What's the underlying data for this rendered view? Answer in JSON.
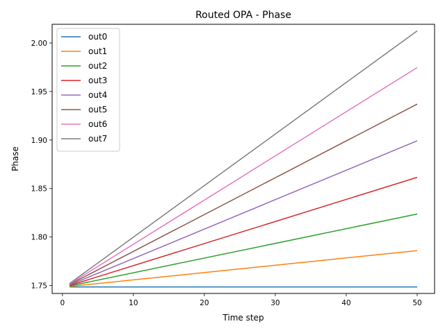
{
  "chart_data": {
    "type": "line",
    "title": "Routed OPA - Phase",
    "xlabel": "Time step",
    "ylabel": "Phase",
    "xlim": [
      -1.45,
      52.45
    ],
    "ylim": [
      1.7418,
      2.0193
    ],
    "xticks": [
      0,
      10,
      20,
      30,
      40,
      50
    ],
    "xtick_labels": [
      "0",
      "10",
      "20",
      "30",
      "40",
      "50"
    ],
    "yticks": [
      1.75,
      1.8,
      1.85,
      1.9,
      1.95,
      2.0
    ],
    "ytick_labels": [
      "1.75",
      "1.80",
      "1.85",
      "1.90",
      "1.95",
      "2.00"
    ],
    "grid": false,
    "legend_position": "upper-left",
    "series": [
      {
        "name": "out0",
        "color": "#1f77b4",
        "x": [
          1,
          50
        ],
        "values": [
          1.7485,
          1.7485
        ]
      },
      {
        "name": "out1",
        "color": "#ff7f0e",
        "x": [
          1,
          50
        ],
        "values": [
          1.749,
          1.786
        ]
      },
      {
        "name": "out2",
        "color": "#2ca02c",
        "x": [
          1,
          50
        ],
        "values": [
          1.7495,
          1.8237
        ]
      },
      {
        "name": "out3",
        "color": "#d62728",
        "x": [
          1,
          50
        ],
        "values": [
          1.75,
          1.8615
        ]
      },
      {
        "name": "out4",
        "color": "#9467bd",
        "x": [
          1,
          50
        ],
        "values": [
          1.7505,
          1.8992
        ]
      },
      {
        "name": "out5",
        "color": "#8c564b",
        "x": [
          1,
          50
        ],
        "values": [
          1.751,
          1.937
        ]
      },
      {
        "name": "out6",
        "color": "#e377c2",
        "x": [
          1,
          50
        ],
        "values": [
          1.7515,
          1.9747
        ]
      },
      {
        "name": "out7",
        "color": "#7f7f7f",
        "x": [
          1,
          50
        ],
        "values": [
          1.752,
          2.0125
        ]
      }
    ]
  }
}
